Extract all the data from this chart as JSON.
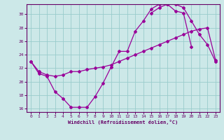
{
  "xlabel": "Windchill (Refroidissement éolien,°C)",
  "bg_color": "#cce8e8",
  "line_color": "#990099",
  "grid_color": "#99cccc",
  "xlim": [
    -0.5,
    23.5
  ],
  "ylim": [
    15.5,
    31.5
  ],
  "yticks": [
    16,
    18,
    20,
    22,
    24,
    26,
    28,
    30
  ],
  "xticks": [
    0,
    1,
    2,
    3,
    4,
    5,
    6,
    7,
    8,
    9,
    10,
    11,
    12,
    13,
    14,
    15,
    16,
    17,
    18,
    19,
    20,
    21,
    22,
    23
  ],
  "line1_x": [
    0,
    1,
    2,
    3,
    4,
    5,
    6,
    7,
    8,
    9,
    10,
    11,
    12,
    13,
    14,
    15,
    16,
    17,
    18,
    19,
    20,
    21,
    22,
    23
  ],
  "line1_y": [
    23.0,
    21.5,
    21.0,
    20.8,
    21.0,
    21.5,
    21.5,
    21.8,
    22.0,
    22.2,
    22.5,
    23.0,
    23.5,
    24.0,
    24.5,
    25.0,
    25.5,
    26.0,
    26.5,
    27.0,
    27.5,
    27.8,
    28.0,
    23.2
  ],
  "line2_x": [
    0,
    1,
    2,
    3,
    4,
    5,
    6,
    7,
    8,
    9,
    10,
    11,
    12,
    13,
    14,
    15,
    16,
    17,
    18,
    19,
    20,
    21,
    22,
    23
  ],
  "line2_y": [
    23.0,
    21.2,
    20.8,
    18.5,
    17.5,
    16.2,
    16.2,
    16.2,
    17.8,
    19.8,
    22.2,
    24.5,
    24.5,
    27.5,
    29.0,
    30.8,
    31.5,
    31.5,
    30.5,
    30.2,
    25.2,
    null,
    null,
    null
  ],
  "line3_x": [
    15,
    16,
    17,
    18,
    19,
    20,
    21,
    22,
    23
  ],
  "line3_y": [
    30.2,
    31.0,
    31.5,
    31.5,
    31.0,
    29.0,
    27.0,
    25.5,
    23.0
  ]
}
